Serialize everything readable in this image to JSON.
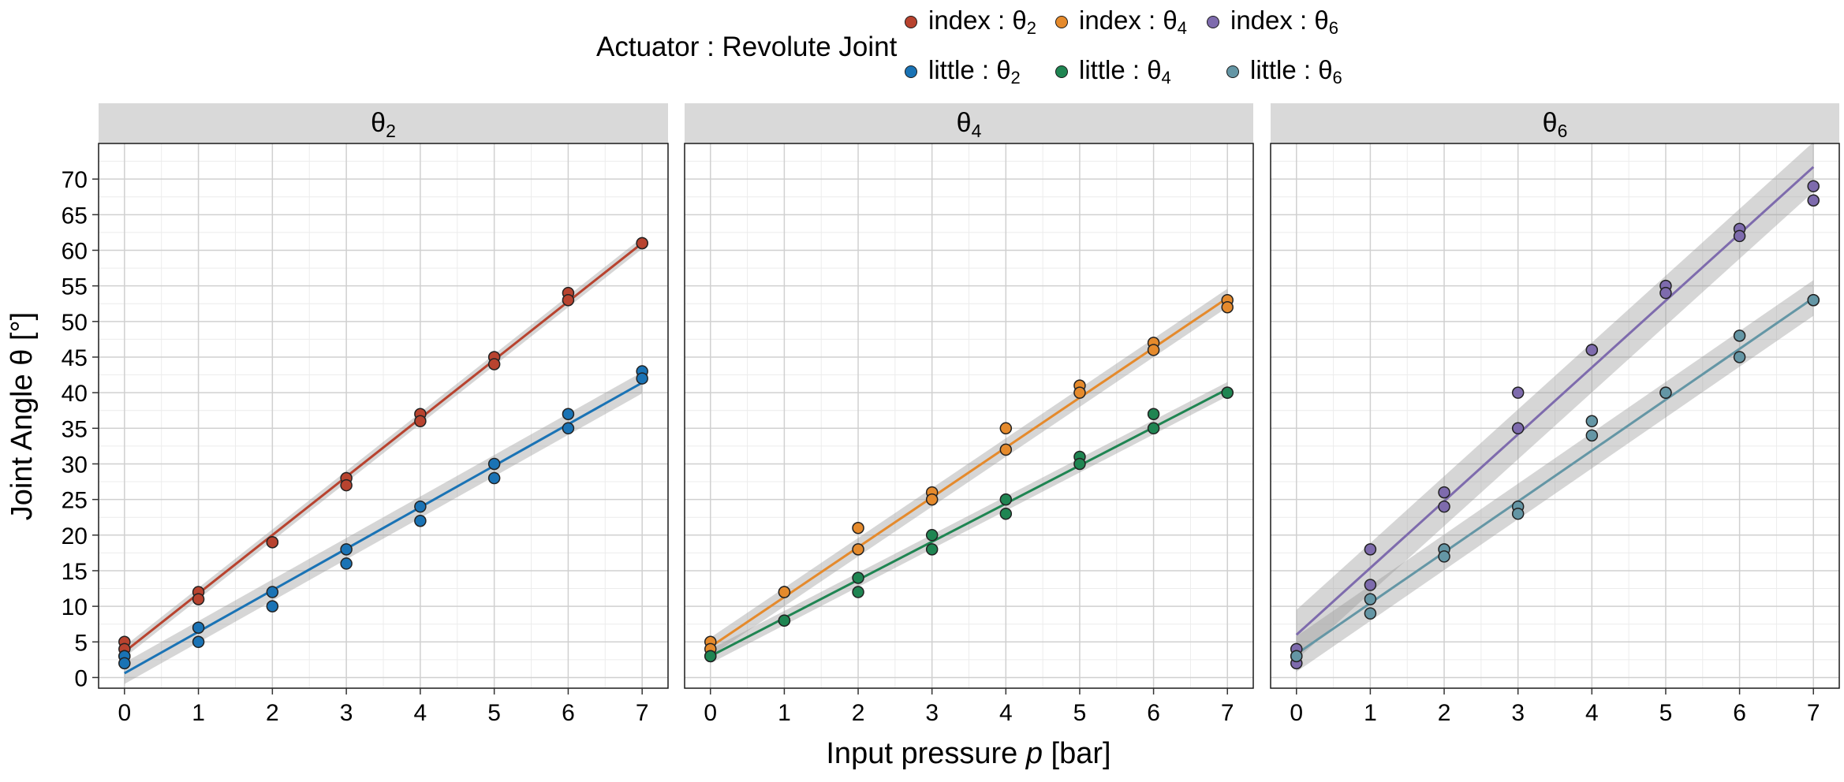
{
  "legend": {
    "title": "Actuator : Revolute Joint",
    "items": [
      {
        "prefix": "index : θ",
        "sub": "2",
        "color": "#b8432f"
      },
      {
        "prefix": "index : θ",
        "sub": "4",
        "color": "#e58a2c"
      },
      {
        "prefix": "index : θ",
        "sub": "6",
        "color": "#7e6bad"
      },
      {
        "prefix": "little : θ",
        "sub": "2",
        "color": "#1a73b5"
      },
      {
        "prefix": "little : θ",
        "sub": "4",
        "color": "#1f8552"
      },
      {
        "prefix": "little : θ",
        "sub": "6",
        "color": "#6496a5"
      }
    ]
  },
  "chart_data": {
    "type": "scatter",
    "title": "",
    "xlabel_prefix": "Input pressure ",
    "xlabel_var": "p",
    "xlabel_suffix": " [bar]",
    "ylabel": "Joint Angle θ [°]",
    "xlim": [
      -0.35,
      7.35
    ],
    "ylim": [
      -1.5,
      75
    ],
    "x_ticks": [
      0,
      1,
      2,
      3,
      4,
      5,
      6,
      7
    ],
    "y_ticks": [
      0,
      5,
      10,
      15,
      20,
      25,
      30,
      35,
      40,
      45,
      50,
      55,
      60,
      65,
      70
    ],
    "grid": true,
    "legend_position": "top",
    "panels": [
      {
        "strip": "θ",
        "strip_sub": "2",
        "series": [
          {
            "name": "index : θ2",
            "color": "#b8432f",
            "fit": [
              3.6,
              61.0
            ],
            "band": 0.8,
            "points": [
              [
                0,
                5
              ],
              [
                0,
                4
              ],
              [
                0,
                3
              ],
              [
                1,
                12
              ],
              [
                1,
                11
              ],
              [
                2,
                19
              ],
              [
                2,
                19
              ],
              [
                3,
                28
              ],
              [
                3,
                27
              ],
              [
                4,
                37
              ],
              [
                4,
                36
              ],
              [
                5,
                45
              ],
              [
                5,
                44
              ],
              [
                6,
                54
              ],
              [
                6,
                53
              ],
              [
                7,
                61
              ],
              [
                7,
                61
              ]
            ]
          },
          {
            "name": "little : θ2",
            "color": "#1a73b5",
            "fit": [
              0.6,
              41.4
            ],
            "band": 1.5,
            "points": [
              [
                0,
                3
              ],
              [
                0,
                2
              ],
              [
                1,
                7
              ],
              [
                1,
                5
              ],
              [
                2,
                12
              ],
              [
                2,
                10
              ],
              [
                3,
                18
              ],
              [
                3,
                16
              ],
              [
                4,
                24
              ],
              [
                4,
                22
              ],
              [
                5,
                30
              ],
              [
                5,
                28
              ],
              [
                6,
                37
              ],
              [
                6,
                35
              ],
              [
                7,
                43
              ],
              [
                7,
                42
              ]
            ]
          }
        ]
      },
      {
        "strip": "θ",
        "strip_sub": "4",
        "series": [
          {
            "name": "index : θ4",
            "color": "#e58a2c",
            "fit": [
              4.3,
              53.3
            ],
            "band": 1.3,
            "points": [
              [
                0,
                5
              ],
              [
                0,
                4
              ],
              [
                1,
                12
              ],
              [
                1,
                12
              ],
              [
                2,
                21
              ],
              [
                2,
                18
              ],
              [
                3,
                26
              ],
              [
                3,
                25
              ],
              [
                4,
                35
              ],
              [
                4,
                32
              ],
              [
                5,
                41
              ],
              [
                5,
                40
              ],
              [
                6,
                47
              ],
              [
                6,
                46
              ],
              [
                7,
                53
              ],
              [
                7,
                52
              ]
            ]
          },
          {
            "name": "little : θ4",
            "color": "#1f8552",
            "fit": [
              3.0,
              40.5
            ],
            "band": 1.0,
            "points": [
              [
                0,
                3
              ],
              [
                0,
                3
              ],
              [
                1,
                8
              ],
              [
                1,
                8
              ],
              [
                2,
                14
              ],
              [
                2,
                12
              ],
              [
                3,
                20
              ],
              [
                3,
                18
              ],
              [
                4,
                25
              ],
              [
                4,
                23
              ],
              [
                5,
                31
              ],
              [
                5,
                30
              ],
              [
                6,
                37
              ],
              [
                6,
                35
              ],
              [
                7,
                40
              ],
              [
                7,
                40
              ]
            ]
          }
        ]
      },
      {
        "strip": "θ",
        "strip_sub": "6",
        "series": [
          {
            "name": "index : θ6",
            "color": "#7e6bad",
            "fit": [
              6.0,
              71.7
            ],
            "band": 3.5,
            "points": [
              [
                0,
                4
              ],
              [
                0,
                3
              ],
              [
                0,
                2
              ],
              [
                1,
                18
              ],
              [
                1,
                13
              ],
              [
                2,
                26
              ],
              [
                2,
                24
              ],
              [
                3,
                40
              ],
              [
                3,
                35
              ],
              [
                4,
                46
              ],
              [
                4,
                46
              ],
              [
                5,
                55
              ],
              [
                5,
                54
              ],
              [
                6,
                63
              ],
              [
                6,
                62
              ],
              [
                7,
                69
              ],
              [
                7,
                67
              ]
            ]
          },
          {
            "name": "little : θ6",
            "color": "#6496a5",
            "fit": [
              3.3,
              53.3
            ],
            "band": 2.5,
            "points": [
              [
                0,
                3
              ],
              [
                1,
                11
              ],
              [
                1,
                9
              ],
              [
                2,
                18
              ],
              [
                2,
                17
              ],
              [
                3,
                24
              ],
              [
                3,
                23
              ],
              [
                4,
                36
              ],
              [
                4,
                34
              ],
              [
                5,
                40
              ],
              [
                5,
                40
              ],
              [
                6,
                48
              ],
              [
                6,
                45
              ],
              [
                7,
                53
              ],
              [
                7,
                53
              ]
            ]
          }
        ]
      }
    ]
  }
}
